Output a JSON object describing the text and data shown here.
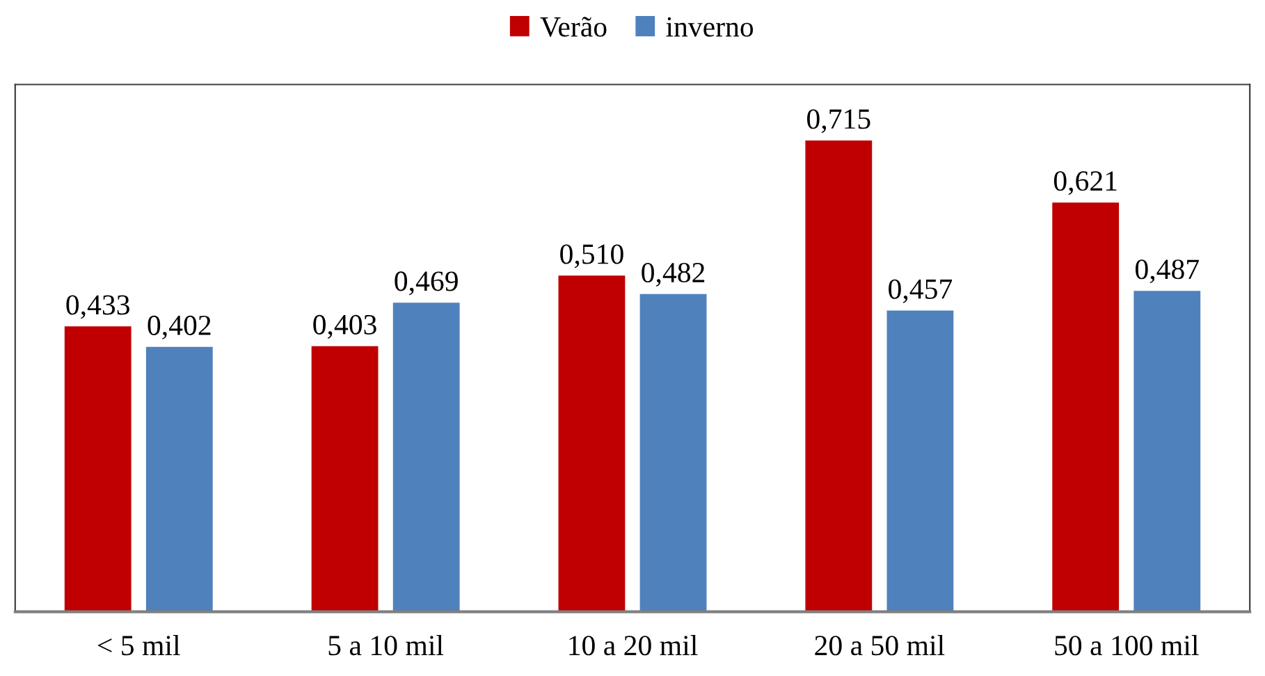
{
  "chart_data": {
    "type": "bar",
    "categories": [
      "< 5 mil",
      "5 a 10 mil",
      "10 a 20 mil",
      "20 a 50 mil",
      "50 a 100 mil"
    ],
    "series": [
      {
        "name": "Verão",
        "color": "#c00000",
        "values": [
          0.433,
          0.403,
          0.51,
          0.715,
          0.621
        ],
        "value_labels": [
          "0,433",
          "0,403",
          "0,510",
          "0,715",
          "0,621"
        ]
      },
      {
        "name": "inverno",
        "color": "#4f81bd",
        "values": [
          0.402,
          0.469,
          0.482,
          0.457,
          0.487
        ],
        "value_labels": [
          "0,402",
          "0,469",
          "0,482",
          "0,457",
          "0,487"
        ]
      }
    ],
    "ylim": [
      0,
      0.8
    ],
    "tick_labels": "x",
    "grid": false,
    "legend": "top"
  }
}
